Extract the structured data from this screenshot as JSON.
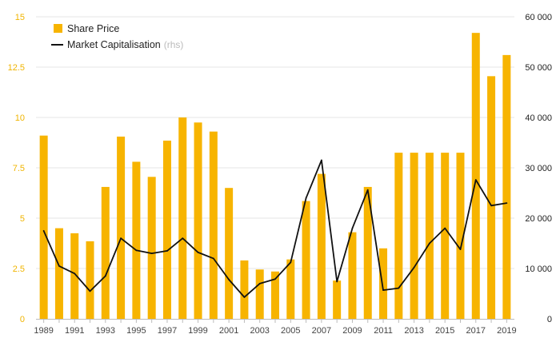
{
  "chart_data": {
    "type": "bar",
    "title": "",
    "x": [
      1989,
      1990,
      1991,
      1992,
      1993,
      1994,
      1995,
      1996,
      1997,
      1998,
      1999,
      2000,
      2001,
      2002,
      2003,
      2004,
      2005,
      2006,
      2007,
      2008,
      2009,
      2010,
      2011,
      2012,
      2013,
      2014,
      2015,
      2016,
      2017,
      2018,
      2019
    ],
    "x_tick_labels": [
      "1989",
      "1991",
      "1993",
      "1995",
      "1997",
      "1999",
      "2001",
      "2003",
      "2005",
      "2007",
      "2009",
      "2011",
      "2013",
      "2015",
      "2017",
      "2019"
    ],
    "series": [
      {
        "name": "Share Price",
        "type": "bar",
        "axis": "left",
        "color": "#f7b400",
        "values": [
          9.1,
          4.5,
          4.25,
          3.85,
          6.55,
          9.05,
          7.8,
          7.05,
          8.85,
          10.0,
          9.75,
          9.3,
          6.5,
          2.9,
          2.45,
          2.35,
          2.95,
          5.85,
          7.2,
          1.9,
          4.3,
          6.55,
          3.5,
          8.25,
          8.25,
          8.25,
          8.25,
          8.25,
          14.2,
          12.05,
          13.1
        ]
      },
      {
        "name": "Market Capitalisation",
        "name_note": "(rhs)",
        "type": "line",
        "axis": "right",
        "color": "#111111",
        "values": [
          17500,
          10500,
          9000,
          5500,
          8500,
          16000,
          13600,
          13000,
          13500,
          16000,
          13200,
          12000,
          7800,
          4300,
          7000,
          7900,
          11200,
          24000,
          31500,
          7400,
          18000,
          25600,
          5700,
          6100,
          10200,
          15000,
          18000,
          13800,
          27600,
          22500,
          23000
        ]
      }
    ],
    "y_left": {
      "range": [
        0,
        15
      ],
      "ticks": [
        "0",
        "2.5",
        "5",
        "7.5",
        "10",
        "12.5",
        "15"
      ],
      "tick_values": [
        0,
        2.5,
        5,
        7.5,
        10,
        12.5,
        15
      ]
    },
    "y_right": {
      "range": [
        0,
        60000
      ],
      "ticks": [
        "0",
        "10 000",
        "20 000",
        "30 000",
        "40 000",
        "50 000",
        "60 000"
      ],
      "tick_values": [
        0,
        10000,
        20000,
        30000,
        40000,
        50000,
        60000
      ]
    },
    "xlabel": "",
    "ylabel": "",
    "grid": true,
    "legend_position": "top-left"
  }
}
